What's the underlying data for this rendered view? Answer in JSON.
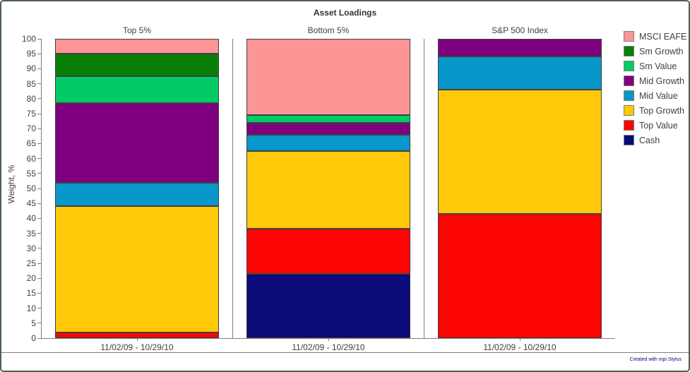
{
  "title": "Asset Loadings",
  "footer": {
    "credit": "Created with mpi Stylus"
  },
  "chart_data": {
    "type": "bar",
    "stacked": true,
    "title": "Asset Loadings",
    "ylabel": "Weight, %",
    "ylim": [
      0,
      100
    ],
    "ytick_step": 5,
    "grid": false,
    "legend_position": "right",
    "panels": [
      {
        "title": "Top 5%",
        "xlabel": "11/02/09 - 10/29/10"
      },
      {
        "title": "Bottom 5%",
        "xlabel": "11/02/09 - 10/29/10"
      },
      {
        "title": "S&P 500 Index",
        "xlabel": "11/02/09 - 10/29/10"
      }
    ],
    "series": [
      {
        "name": "Cash",
        "color": "#0A0A78",
        "values": [
          0,
          21.5,
          0
        ]
      },
      {
        "name": "Top Value",
        "color": "#FB0505",
        "values": [
          2,
          15,
          41.5
        ]
      },
      {
        "name": "Top Growth",
        "color": "#FFC808",
        "values": [
          42,
          26,
          41.5
        ]
      },
      {
        "name": "Mid Value",
        "color": "#0897C9",
        "values": [
          8,
          5.5,
          11
        ]
      },
      {
        "name": "Mid Growth",
        "color": "#7F007F",
        "values": [
          26.5,
          4,
          6
        ]
      },
      {
        "name": "Sm Value",
        "color": "#00CB66",
        "values": [
          9,
          2.5,
          0
        ]
      },
      {
        "name": "Sm Growth",
        "color": "#077F07",
        "values": [
          7.5,
          0,
          0
        ]
      },
      {
        "name": "MSCI EAFE",
        "color": "#FC9696",
        "values": [
          5,
          25.5,
          0
        ]
      }
    ],
    "legend": [
      "MSCI EAFE",
      "Sm Growth",
      "Sm Value",
      "Mid Growth",
      "Mid Value",
      "Top Growth",
      "Top Value",
      "Cash"
    ]
  }
}
